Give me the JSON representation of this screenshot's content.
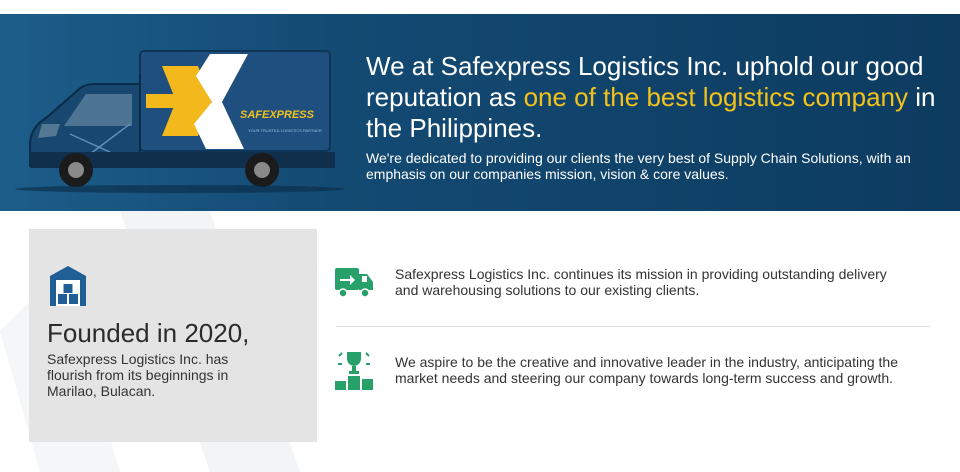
{
  "hero": {
    "headline_start": "We at Safexpress Logistics Inc. uphold our good reputation as ",
    "headline_highlight": "one of the best logistics company",
    "headline_end": " in the Philippines.",
    "subtext": "We're dedicated to providing our clients the very best of Supply Chain Solutions, with an emphasis on our companies mission, vision & core values.",
    "truck_brand": "SAFEXPRESS",
    "truck_tagline": "YOUR TRUSTED LOGISTICS PARTNER"
  },
  "founded": {
    "title": "Founded in 2020,",
    "description": "Safexpress Logistics Inc. has flourish from its beginnings in Marilao, Bulacan.",
    "icon": "warehouse-icon"
  },
  "features": [
    {
      "icon": "delivery-truck-icon",
      "text": "Safexpress Logistics Inc. continues its mission in providing outstanding delivery and warehousing solutions to our existing clients."
    },
    {
      "icon": "trophy-podium-icon",
      "text": "We aspire to be the creative and innovative leader in the industry, anticipating the market needs and steering our company towards long-term success and growth."
    }
  ],
  "colors": {
    "hero_bg": "#134a73",
    "highlight": "#f3c21a",
    "icon_blue": "#1f5f95",
    "icon_green": "#27a06a",
    "card_bg": "#e4e4e4"
  }
}
